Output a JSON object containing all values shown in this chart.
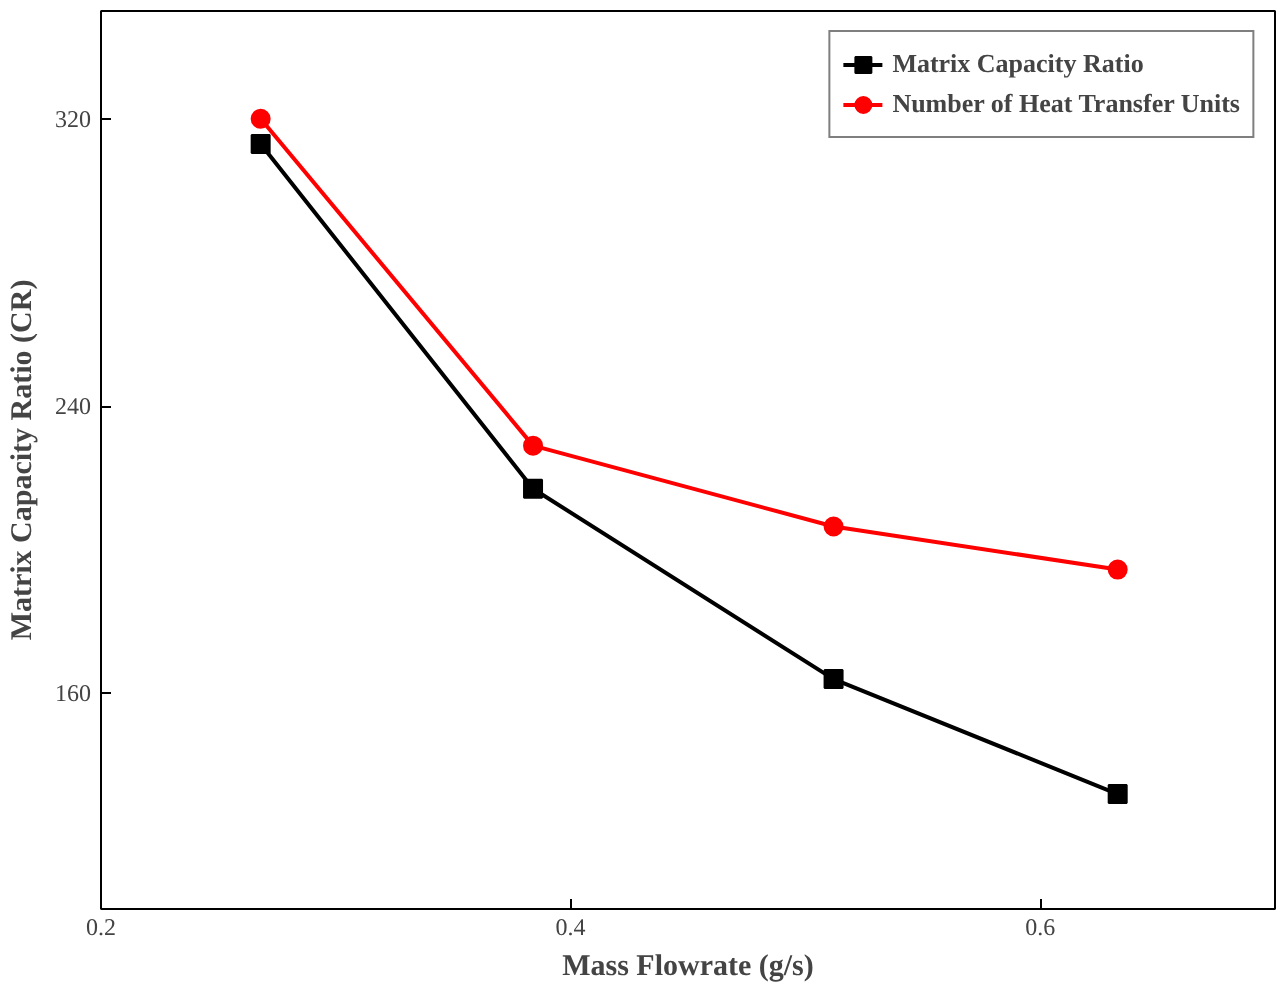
{
  "chart_data": {
    "type": "line",
    "xlabel": "Mass Flowrate (g/s)",
    "ylabel": "Matrix Capacity Ratio (CR)",
    "x": [
      0.268,
      0.384,
      0.512,
      0.633
    ],
    "series": [
      {
        "name": "Matrix Capacity Ratio",
        "color": "#000000",
        "marker": "square",
        "values": [
          313,
          217,
          164,
          132
        ]
      },
      {
        "name": "Number of Heat Transfer Units",
        "color": "#ff0000",
        "marker": "circle",
        "values": [
          320,
          229,
          206.5,
          194.5
        ]
      }
    ],
    "xlim": [
      0.2,
      0.7
    ],
    "xticks": [
      0.2,
      0.4,
      0.6
    ],
    "ylim": [
      100,
      350
    ],
    "yticks": [
      160,
      240,
      320
    ],
    "grid": false,
    "legend": "top right",
    "line_style": "solid"
  }
}
